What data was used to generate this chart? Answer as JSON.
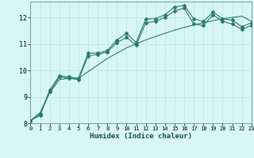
{
  "xlabel": "Humidex (Indice chaleur)",
  "bg_color": "#d8f5f5",
  "grid_color": "#b8e8e0",
  "line_color": "#2a7a6a",
  "xlim": [
    0,
    23
  ],
  "ylim": [
    8,
    12.6
  ],
  "yticks": [
    8,
    9,
    10,
    11,
    12
  ],
  "xticks": [
    0,
    1,
    2,
    3,
    4,
    5,
    6,
    7,
    8,
    9,
    10,
    11,
    12,
    13,
    14,
    15,
    16,
    17,
    18,
    19,
    20,
    21,
    22,
    23
  ],
  "line1_x": [
    0,
    1,
    2,
    3,
    4,
    5,
    6,
    7,
    8,
    9,
    10,
    11,
    12,
    13,
    14,
    15,
    16,
    17,
    18,
    19,
    20,
    21,
    22,
    23
  ],
  "line1_y": [
    8.1,
    8.35,
    9.25,
    9.8,
    9.75,
    9.7,
    10.65,
    10.65,
    10.75,
    11.15,
    11.4,
    11.05,
    11.95,
    11.95,
    12.1,
    12.4,
    12.45,
    11.95,
    11.85,
    12.2,
    11.95,
    11.9,
    11.65,
    11.8
  ],
  "line2_x": [
    0,
    1,
    2,
    3,
    4,
    5,
    6,
    7,
    8,
    9,
    10,
    11,
    12,
    13,
    14,
    15,
    16,
    17,
    18,
    19,
    20,
    21,
    22,
    23
  ],
  "line2_y": [
    8.1,
    8.3,
    9.2,
    9.75,
    9.7,
    9.65,
    10.55,
    10.6,
    10.7,
    11.05,
    11.25,
    10.95,
    11.8,
    11.85,
    12.0,
    12.25,
    12.35,
    11.75,
    11.7,
    12.1,
    11.85,
    11.75,
    11.55,
    11.7
  ],
  "line3_x": [
    0,
    1,
    2,
    3,
    4,
    5,
    6,
    7,
    8,
    9,
    10,
    11,
    12,
    13,
    14,
    15,
    16,
    17,
    18,
    19,
    20,
    21,
    22,
    23
  ],
  "line3_y": [
    8.1,
    8.4,
    9.15,
    9.65,
    9.7,
    9.7,
    9.95,
    10.2,
    10.45,
    10.65,
    10.85,
    11.0,
    11.15,
    11.28,
    11.4,
    11.52,
    11.62,
    11.72,
    11.8,
    11.88,
    11.95,
    12.0,
    12.05,
    11.85
  ]
}
